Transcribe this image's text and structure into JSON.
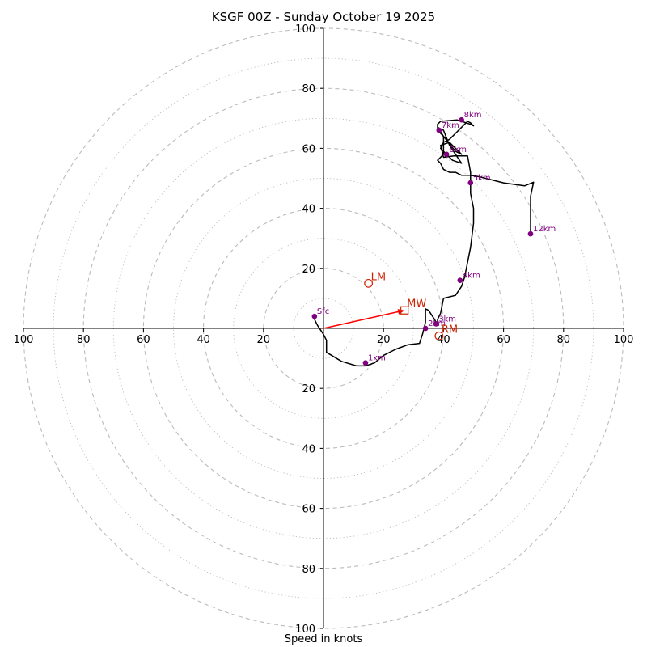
{
  "chart_data": {
    "type": "hodograph",
    "title": "KSGF 00Z - Sunday October 19 2025",
    "xlabel": "Speed in knots",
    "axis_range": [
      -100,
      100
    ],
    "ring_spacing_major": 20,
    "ring_spacing_minor": 10,
    "x_ticks": [
      "100",
      "80",
      "60",
      "40",
      "20",
      "20",
      "40",
      "60",
      "80",
      "100"
    ],
    "x_tick_values": [
      -100,
      -80,
      -60,
      -40,
      -20,
      20,
      40,
      60,
      80,
      100
    ],
    "y_ticks": [
      "100",
      "80",
      "60",
      "40",
      "20",
      "20",
      "40",
      "60",
      "80",
      "100"
    ],
    "y_tick_values": [
      100,
      80,
      60,
      40,
      20,
      -20,
      -40,
      -60,
      -80,
      -100
    ],
    "hodograph_trace": [
      [
        -3,
        3
      ],
      [
        -2,
        1
      ],
      [
        0,
        -2
      ],
      [
        1,
        -4
      ],
      [
        1,
        -8
      ],
      [
        6,
        -11
      ],
      [
        11,
        -12.5
      ],
      [
        14,
        -12.5
      ],
      [
        17,
        -11.5
      ],
      [
        20,
        -9
      ],
      [
        24,
        -7
      ],
      [
        28,
        -5.5
      ],
      [
        32,
        -5
      ],
      [
        33,
        -2
      ],
      [
        34,
        2
      ],
      [
        34,
        6.5
      ],
      [
        35,
        6
      ],
      [
        37,
        3
      ],
      [
        38,
        1
      ],
      [
        38,
        3
      ],
      [
        39,
        5
      ],
      [
        40,
        10
      ],
      [
        44,
        11
      ],
      [
        46,
        14
      ],
      [
        47,
        17
      ],
      [
        48,
        22
      ],
      [
        49,
        27
      ],
      [
        50,
        35
      ],
      [
        50,
        40
      ],
      [
        49,
        45
      ],
      [
        49,
        52
      ],
      [
        48,
        57.5
      ],
      [
        43.5,
        57.5
      ],
      [
        40,
        57
      ],
      [
        39,
        61
      ],
      [
        42,
        62
      ],
      [
        46,
        58
      ],
      [
        44,
        59
      ],
      [
        40,
        64
      ],
      [
        38,
        67
      ],
      [
        40,
        66
      ],
      [
        42,
        61
      ],
      [
        44,
        58
      ],
      [
        46,
        55
      ],
      [
        43,
        56
      ],
      [
        39,
        60
      ],
      [
        40,
        62
      ],
      [
        42,
        63
      ],
      [
        45,
        66
      ],
      [
        47,
        68
      ],
      [
        48,
        69
      ],
      [
        49,
        68.5
      ],
      [
        50,
        67.5
      ],
      [
        49,
        68
      ],
      [
        44.5,
        69.5
      ],
      [
        39,
        69
      ],
      [
        38,
        68
      ],
      [
        38,
        66
      ],
      [
        40,
        64
      ],
      [
        41,
        63
      ],
      [
        40,
        64
      ],
      [
        40,
        58
      ],
      [
        39,
        57
      ],
      [
        38,
        56
      ],
      [
        39,
        55
      ],
      [
        40,
        53
      ],
      [
        42,
        52
      ],
      [
        44,
        52
      ],
      [
        46,
        51
      ],
      [
        49,
        51
      ],
      [
        52,
        50.5
      ],
      [
        60,
        48.5
      ],
      [
        67,
        47.5
      ],
      [
        70,
        48.7
      ],
      [
        69,
        44
      ],
      [
        69,
        31.5
      ]
    ],
    "height_markers": [
      {
        "label": "Sfc",
        "u": -3,
        "v": 4
      },
      {
        "label": "1km",
        "u": 14,
        "v": -11.5
      },
      {
        "label": "2km",
        "u": 34,
        "v": 0
      },
      {
        "label": "3km",
        "u": 37.5,
        "v": 1.5
      },
      {
        "label": "4km",
        "u": 45.5,
        "v": 16
      },
      {
        "label": "5km",
        "u": 49,
        "v": 48.5
      },
      {
        "label": "6km",
        "u": 41,
        "v": 58
      },
      {
        "label": "7km",
        "u": 38.5,
        "v": 66
      },
      {
        "label": "8km",
        "u": 46,
        "v": 69.5
      },
      {
        "label": "12km",
        "u": 69,
        "v": 31.5
      }
    ],
    "storm_motion": [
      {
        "label": "LM",
        "u": 15,
        "v": 15,
        "marker": "circle"
      },
      {
        "label": "MW",
        "u": 27,
        "v": 6,
        "marker": "square"
      },
      {
        "label": "RM",
        "u": 38.5,
        "v": -2.5,
        "marker": "circle"
      }
    ],
    "mean_wind_vector": {
      "u": 27,
      "v": 6
    },
    "colors": {
      "trace": "#000000",
      "markers": "#800080",
      "storm_motion": "#cc2200",
      "vector": "#ff0000",
      "rings": "#bbbbbb"
    }
  }
}
